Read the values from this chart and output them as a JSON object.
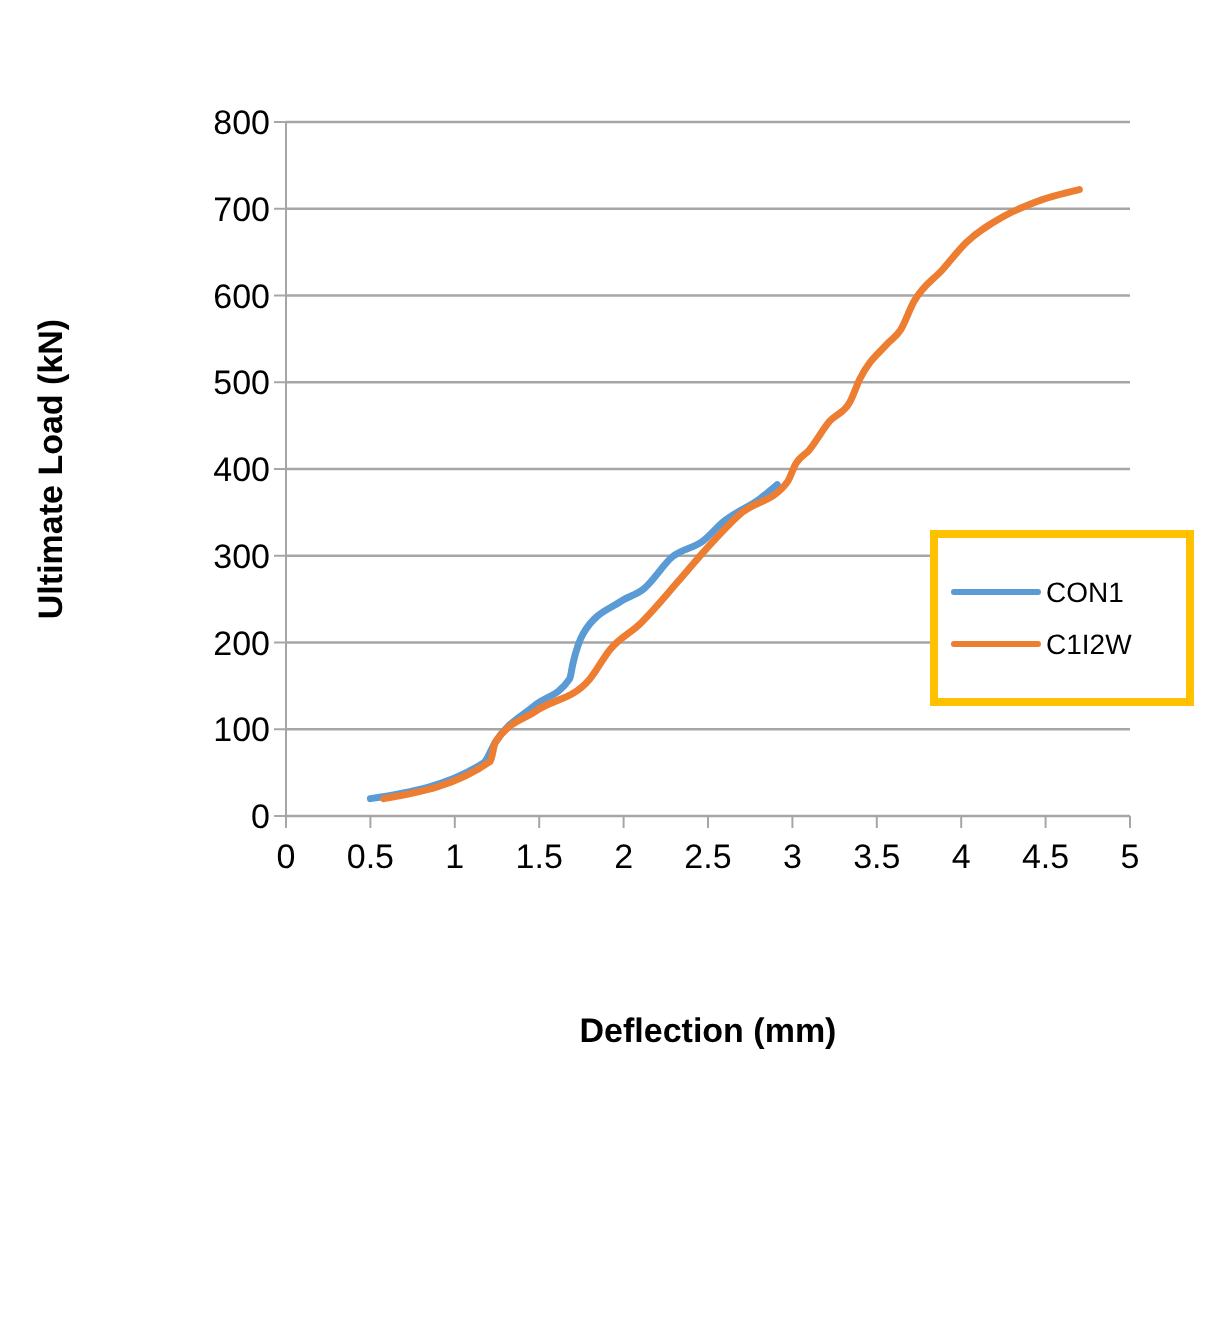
{
  "chart_data": {
    "type": "line",
    "xlabel": "Deflection (mm)",
    "ylabel": "Ultimate Load (kN)",
    "xlim": [
      0,
      5
    ],
    "xticks": [
      0,
      0.5,
      1,
      1.5,
      2,
      2.5,
      3,
      3.5,
      4,
      4.5,
      5
    ],
    "ylim": [
      0,
      800
    ],
    "yticks": [
      0,
      100,
      200,
      300,
      400,
      500,
      600,
      700,
      800
    ],
    "grid": "y",
    "legend": "right",
    "marker": "none",
    "line_style": "solid",
    "series": [
      {
        "name": "CON1",
        "color": "#5b9bd5",
        "x": [
          0.5,
          1.17,
          1.24,
          1.47,
          1.68,
          1.7,
          1.76,
          1.98,
          2.12,
          2.29,
          2.47,
          2.59,
          2.81,
          2.91
        ],
        "values": [
          20,
          61,
          85,
          127,
          158,
          176,
          210,
          247,
          262,
          299,
          317,
          339,
          366,
          382
        ]
      },
      {
        "name": "C1I2W",
        "color": "#ed7d31",
        "x": [
          0.58,
          1.21,
          1.24,
          1.48,
          1.8,
          1.92,
          2.1,
          2.33,
          2.49,
          2.69,
          2.97,
          3.02,
          3.1,
          3.22,
          3.34,
          3.4,
          3.56,
          3.64,
          3.72,
          3.89,
          4.03,
          4.25,
          4.43,
          4.7
        ],
        "values": [
          20,
          63,
          85,
          121,
          158,
          192,
          222,
          272,
          308,
          348,
          385,
          406,
          422,
          455,
          477,
          504,
          544,
          560,
          593,
          630,
          661,
          691,
          707,
          722
        ]
      }
    ]
  }
}
